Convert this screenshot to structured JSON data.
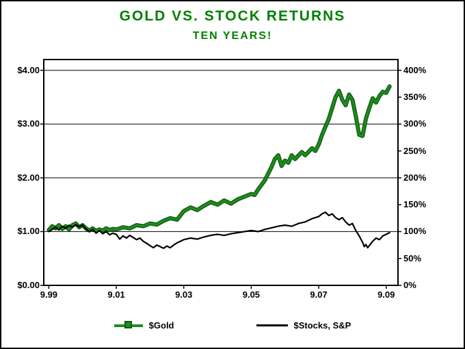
{
  "colors": {
    "title_green": "#008000",
    "gold_line": "#1f8c1f",
    "gold_line_edge": "#0f5a0f",
    "stock_line": "#000000",
    "axis": "#000000",
    "background": "#ffffff"
  },
  "chart_data": {
    "type": "line",
    "title": "GOLD VS. STOCK RETURNS",
    "subtitle": "TEN YEARS!",
    "grid": true,
    "legend_position": "bottom",
    "x_tick_labels": [
      "9.99",
      "9.01",
      "9.03",
      "9.05",
      "9.07",
      "9.09"
    ],
    "x_tick_values": [
      0,
      2,
      4,
      6,
      8,
      10
    ],
    "x_range": [
      -0.15,
      10.35
    ],
    "y_range": [
      0,
      4.2
    ],
    "y_left_tick_labels": [
      "$4.00",
      "$3.00",
      "$2.00",
      "$1.00",
      "$0.00"
    ],
    "y_left_tick_values": [
      4,
      3,
      2,
      1,
      0
    ],
    "y_right_tick_labels": [
      "400%",
      "350%",
      "300%",
      "250%",
      "200%",
      "150%",
      "100%",
      "50%",
      "0%"
    ],
    "y_right_tick_values": [
      4,
      3.5,
      3,
      2.5,
      2,
      1.5,
      1,
      0.5,
      0
    ],
    "gridline_values": [
      1,
      2,
      3,
      4
    ],
    "legend": [
      {
        "label": "$Gold",
        "color": "#1f8c1f"
      },
      {
        "label": "$Stocks, S&P",
        "color": "#000000"
      }
    ],
    "series": [
      {
        "name": "$Gold",
        "color": "#1f8c1f",
        "edge_color": "#0f5a0f",
        "width": 3.2,
        "edge_width": 6,
        "points": [
          [
            0,
            1.03
          ],
          [
            0.1,
            1.1
          ],
          [
            0.2,
            1.06
          ],
          [
            0.3,
            1.12
          ],
          [
            0.4,
            1.05
          ],
          [
            0.5,
            1.1
          ],
          [
            0.6,
            1.04
          ],
          [
            0.7,
            1.12
          ],
          [
            0.8,
            1.15
          ],
          [
            0.9,
            1.08
          ],
          [
            1,
            1.12
          ],
          [
            1.1,
            1.06
          ],
          [
            1.2,
            1.02
          ],
          [
            1.3,
            1.06
          ],
          [
            1.4,
            1.01
          ],
          [
            1.5,
            1.04
          ],
          [
            1.6,
            1.02
          ],
          [
            1.7,
            1.06
          ],
          [
            1.8,
            1.03
          ],
          [
            1.9,
            1.05
          ],
          [
            2,
            1.04
          ],
          [
            2.2,
            1.08
          ],
          [
            2.4,
            1.06
          ],
          [
            2.6,
            1.12
          ],
          [
            2.8,
            1.1
          ],
          [
            3,
            1.15
          ],
          [
            3.2,
            1.13
          ],
          [
            3.4,
            1.2
          ],
          [
            3.6,
            1.25
          ],
          [
            3.8,
            1.22
          ],
          [
            4,
            1.38
          ],
          [
            4.2,
            1.45
          ],
          [
            4.4,
            1.4
          ],
          [
            4.6,
            1.48
          ],
          [
            4.8,
            1.55
          ],
          [
            5,
            1.5
          ],
          [
            5.2,
            1.58
          ],
          [
            5.4,
            1.52
          ],
          [
            5.6,
            1.6
          ],
          [
            5.8,
            1.65
          ],
          [
            6,
            1.7
          ],
          [
            6.1,
            1.68
          ],
          [
            6.2,
            1.78
          ],
          [
            6.4,
            1.95
          ],
          [
            6.6,
            2.2
          ],
          [
            6.7,
            2.35
          ],
          [
            6.8,
            2.42
          ],
          [
            6.9,
            2.22
          ],
          [
            7,
            2.32
          ],
          [
            7.1,
            2.28
          ],
          [
            7.2,
            2.42
          ],
          [
            7.3,
            2.35
          ],
          [
            7.5,
            2.48
          ],
          [
            7.6,
            2.42
          ],
          [
            7.8,
            2.55
          ],
          [
            7.9,
            2.5
          ],
          [
            8,
            2.62
          ],
          [
            8.1,
            2.8
          ],
          [
            8.2,
            2.95
          ],
          [
            8.3,
            3.1
          ],
          [
            8.4,
            3.3
          ],
          [
            8.5,
            3.5
          ],
          [
            8.6,
            3.62
          ],
          [
            8.7,
            3.45
          ],
          [
            8.8,
            3.35
          ],
          [
            8.9,
            3.55
          ],
          [
            9,
            3.45
          ],
          [
            9.1,
            3.15
          ],
          [
            9.2,
            2.8
          ],
          [
            9.3,
            2.78
          ],
          [
            9.4,
            3.1
          ],
          [
            9.5,
            3.3
          ],
          [
            9.6,
            3.48
          ],
          [
            9.7,
            3.4
          ],
          [
            9.8,
            3.52
          ],
          [
            9.9,
            3.6
          ],
          [
            10,
            3.58
          ],
          [
            10.1,
            3.7
          ]
        ]
      },
      {
        "name": "$Stocks, S&P",
        "color": "#000000",
        "width": 2.2,
        "points": [
          [
            0,
            1.0
          ],
          [
            0.1,
            1.04
          ],
          [
            0.2,
            1.08
          ],
          [
            0.3,
            1.03
          ],
          [
            0.4,
            1.1
          ],
          [
            0.5,
            1.06
          ],
          [
            0.6,
            1.12
          ],
          [
            0.7,
            1.08
          ],
          [
            0.8,
            1.13
          ],
          [
            0.9,
            1.09
          ],
          [
            1,
            1.12
          ],
          [
            1.1,
            1.05
          ],
          [
            1.2,
            1.0
          ],
          [
            1.3,
            1.04
          ],
          [
            1.4,
            0.97
          ],
          [
            1.5,
            1.02
          ],
          [
            1.6,
            0.96
          ],
          [
            1.7,
            1.0
          ],
          [
            1.8,
            0.94
          ],
          [
            1.9,
            0.97
          ],
          [
            2,
            0.95
          ],
          [
            2.1,
            0.86
          ],
          [
            2.2,
            0.92
          ],
          [
            2.3,
            0.88
          ],
          [
            2.4,
            0.93
          ],
          [
            2.5,
            0.89
          ],
          [
            2.6,
            0.85
          ],
          [
            2.7,
            0.88
          ],
          [
            2.8,
            0.82
          ],
          [
            2.9,
            0.78
          ],
          [
            3,
            0.74
          ],
          [
            3.1,
            0.7
          ],
          [
            3.2,
            0.75
          ],
          [
            3.3,
            0.72
          ],
          [
            3.4,
            0.69
          ],
          [
            3.5,
            0.73
          ],
          [
            3.6,
            0.7
          ],
          [
            3.7,
            0.75
          ],
          [
            3.8,
            0.79
          ],
          [
            3.9,
            0.82
          ],
          [
            4,
            0.85
          ],
          [
            4.2,
            0.88
          ],
          [
            4.4,
            0.86
          ],
          [
            4.6,
            0.9
          ],
          [
            4.8,
            0.93
          ],
          [
            5,
            0.95
          ],
          [
            5.2,
            0.93
          ],
          [
            5.4,
            0.96
          ],
          [
            5.6,
            0.98
          ],
          [
            5.8,
            1.0
          ],
          [
            6,
            1.02
          ],
          [
            6.2,
            1.0
          ],
          [
            6.4,
            1.04
          ],
          [
            6.6,
            1.07
          ],
          [
            6.8,
            1.1
          ],
          [
            7,
            1.12
          ],
          [
            7.2,
            1.1
          ],
          [
            7.4,
            1.15
          ],
          [
            7.6,
            1.18
          ],
          [
            7.8,
            1.24
          ],
          [
            8,
            1.28
          ],
          [
            8.1,
            1.33
          ],
          [
            8.2,
            1.36
          ],
          [
            8.3,
            1.3
          ],
          [
            8.4,
            1.33
          ],
          [
            8.5,
            1.26
          ],
          [
            8.6,
            1.22
          ],
          [
            8.7,
            1.26
          ],
          [
            8.8,
            1.18
          ],
          [
            8.9,
            1.12
          ],
          [
            9,
            1.15
          ],
          [
            9.1,
            1.02
          ],
          [
            9.2,
            0.92
          ],
          [
            9.3,
            0.8
          ],
          [
            9.35,
            0.72
          ],
          [
            9.4,
            0.76
          ],
          [
            9.45,
            0.7
          ],
          [
            9.5,
            0.74
          ],
          [
            9.6,
            0.82
          ],
          [
            9.7,
            0.88
          ],
          [
            9.8,
            0.85
          ],
          [
            9.9,
            0.92
          ],
          [
            10,
            0.95
          ],
          [
            10.1,
            0.98
          ]
        ]
      }
    ]
  }
}
